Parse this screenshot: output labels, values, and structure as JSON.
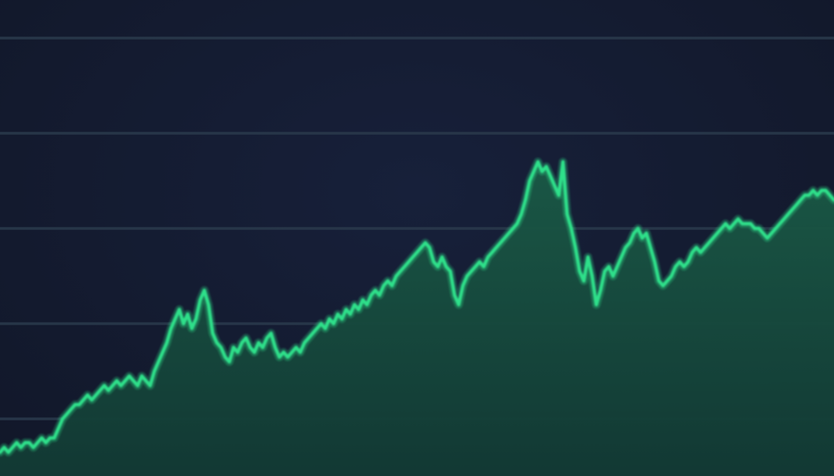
{
  "colors": {
    "background": "#141b30",
    "line": "#2ee08a",
    "area_top": "#1a5a46",
    "area_bottom": "#123a34",
    "grid": "#2a3a4c"
  },
  "chart_data": {
    "type": "area",
    "title": "",
    "xlabel": "",
    "ylabel": "",
    "axes_visible": false,
    "grid": "horizontal",
    "grid_y": [
      92,
      72,
      52,
      32,
      12
    ],
    "xlim": [
      0,
      200
    ],
    "ylim": [
      0,
      100
    ],
    "series": [
      {
        "values": [
          [
            0,
            5
          ],
          [
            1,
            6
          ],
          [
            2,
            5
          ],
          [
            3,
            6
          ],
          [
            4,
            7
          ],
          [
            5,
            6
          ],
          [
            6,
            7
          ],
          [
            7,
            7
          ],
          [
            8,
            6
          ],
          [
            9,
            7
          ],
          [
            10,
            8
          ],
          [
            11,
            7
          ],
          [
            12,
            8
          ],
          [
            13,
            8
          ],
          [
            14,
            10
          ],
          [
            15,
            12
          ],
          [
            16,
            13
          ],
          [
            17,
            14
          ],
          [
            18,
            15
          ],
          [
            19,
            15
          ],
          [
            20,
            16
          ],
          [
            21,
            17
          ],
          [
            22,
            16
          ],
          [
            23,
            17
          ],
          [
            24,
            18
          ],
          [
            25,
            19
          ],
          [
            26,
            18
          ],
          [
            27,
            19
          ],
          [
            28,
            20
          ],
          [
            29,
            19
          ],
          [
            30,
            20
          ],
          [
            31,
            21
          ],
          [
            32,
            20
          ],
          [
            33,
            19
          ],
          [
            34,
            21
          ],
          [
            35,
            20
          ],
          [
            36,
            19
          ],
          [
            37,
            22
          ],
          [
            38,
            24
          ],
          [
            39,
            26
          ],
          [
            40,
            28
          ],
          [
            41,
            31
          ],
          [
            42,
            33
          ],
          [
            43,
            35
          ],
          [
            44,
            32
          ],
          [
            45,
            34
          ],
          [
            46,
            31
          ],
          [
            47,
            33
          ],
          [
            48,
            37
          ],
          [
            49,
            39
          ],
          [
            50,
            36
          ],
          [
            51,
            30
          ],
          [
            52,
            28
          ],
          [
            53,
            27
          ],
          [
            54,
            25
          ],
          [
            55,
            24
          ],
          [
            56,
            27
          ],
          [
            57,
            26
          ],
          [
            58,
            28
          ],
          [
            59,
            29
          ],
          [
            60,
            27
          ],
          [
            61,
            26
          ],
          [
            62,
            28
          ],
          [
            63,
            27
          ],
          [
            64,
            29
          ],
          [
            65,
            30
          ],
          [
            66,
            27
          ],
          [
            67,
            25
          ],
          [
            68,
            26
          ],
          [
            69,
            25
          ],
          [
            70,
            26
          ],
          [
            71,
            27
          ],
          [
            72,
            26
          ],
          [
            73,
            28
          ],
          [
            74,
            29
          ],
          [
            75,
            30
          ],
          [
            76,
            31
          ],
          [
            77,
            32
          ],
          [
            78,
            31
          ],
          [
            79,
            33
          ],
          [
            80,
            32
          ],
          [
            81,
            34
          ],
          [
            82,
            33
          ],
          [
            83,
            35
          ],
          [
            84,
            34
          ],
          [
            85,
            36
          ],
          [
            86,
            35
          ],
          [
            87,
            37
          ],
          [
            88,
            36
          ],
          [
            89,
            38
          ],
          [
            90,
            39
          ],
          [
            91,
            38
          ],
          [
            92,
            40
          ],
          [
            93,
            41
          ],
          [
            94,
            40
          ],
          [
            95,
            42
          ],
          [
            96,
            43
          ],
          [
            97,
            44
          ],
          [
            98,
            45
          ],
          [
            99,
            46
          ],
          [
            100,
            47
          ],
          [
            101,
            48
          ],
          [
            102,
            49
          ],
          [
            103,
            48
          ],
          [
            104,
            45
          ],
          [
            105,
            44
          ],
          [
            106,
            46
          ],
          [
            107,
            44
          ],
          [
            108,
            43
          ],
          [
            109,
            38
          ],
          [
            110,
            36
          ],
          [
            111,
            40
          ],
          [
            112,
            42
          ],
          [
            113,
            43
          ],
          [
            114,
            44
          ],
          [
            115,
            45
          ],
          [
            116,
            44
          ],
          [
            117,
            46
          ],
          [
            118,
            47
          ],
          [
            119,
            48
          ],
          [
            120,
            49
          ],
          [
            121,
            50
          ],
          [
            122,
            51
          ],
          [
            123,
            52
          ],
          [
            124,
            53
          ],
          [
            125,
            55
          ],
          [
            126,
            58
          ],
          [
            127,
            62
          ],
          [
            128,
            64
          ],
          [
            129,
            66
          ],
          [
            130,
            64
          ],
          [
            131,
            65
          ],
          [
            132,
            63
          ],
          [
            133,
            61
          ],
          [
            134,
            59
          ],
          [
            135,
            66
          ],
          [
            136,
            55
          ],
          [
            137,
            52
          ],
          [
            138,
            48
          ],
          [
            139,
            43
          ],
          [
            140,
            41
          ],
          [
            141,
            46
          ],
          [
            142,
            42
          ],
          [
            143,
            36
          ],
          [
            144,
            39
          ],
          [
            145,
            43
          ],
          [
            146,
            44
          ],
          [
            147,
            42
          ],
          [
            148,
            44
          ],
          [
            149,
            46
          ],
          [
            150,
            48
          ],
          [
            151,
            49
          ],
          [
            152,
            51
          ],
          [
            153,
            52
          ],
          [
            154,
            50
          ],
          [
            155,
            51
          ],
          [
            156,
            48
          ],
          [
            157,
            45
          ],
          [
            158,
            41
          ],
          [
            159,
            40
          ],
          [
            160,
            41
          ],
          [
            161,
            42
          ],
          [
            162,
            44
          ],
          [
            163,
            45
          ],
          [
            164,
            44
          ],
          [
            165,
            45
          ],
          [
            166,
            47
          ],
          [
            167,
            48
          ],
          [
            168,
            47
          ],
          [
            169,
            48
          ],
          [
            170,
            49
          ],
          [
            171,
            50
          ],
          [
            172,
            51
          ],
          [
            173,
            52
          ],
          [
            174,
            53
          ],
          [
            175,
            52
          ],
          [
            176,
            53
          ],
          [
            177,
            54
          ],
          [
            178,
            53
          ],
          [
            179,
            53
          ],
          [
            180,
            53
          ],
          [
            181,
            52
          ],
          [
            182,
            52
          ],
          [
            183,
            51
          ],
          [
            184,
            50
          ],
          [
            185,
            51
          ],
          [
            186,
            52
          ],
          [
            187,
            53
          ],
          [
            188,
            54
          ],
          [
            189,
            55
          ],
          [
            190,
            56
          ],
          [
            191,
            57
          ],
          [
            192,
            58
          ],
          [
            193,
            59
          ],
          [
            194,
            59
          ],
          [
            195,
            60
          ],
          [
            196,
            59
          ],
          [
            197,
            60
          ],
          [
            198,
            60
          ],
          [
            199,
            59
          ],
          [
            200,
            58
          ]
        ]
      }
    ]
  }
}
